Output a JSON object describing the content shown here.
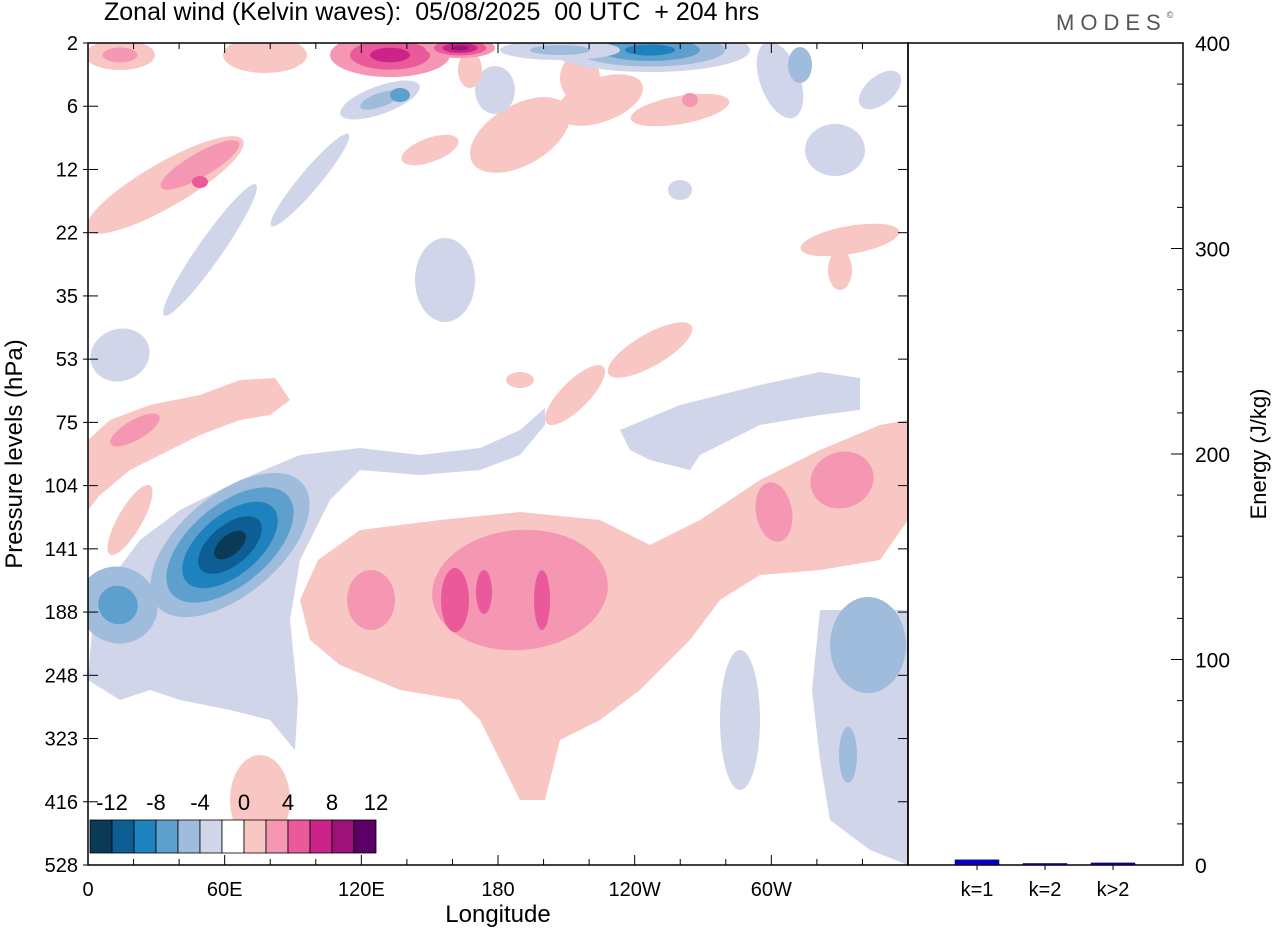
{
  "header": {
    "title": "Zonal wind (Kelvin waves):  05/08/2025  00 UTC  + 204 hrs",
    "brand": "MODES",
    "brand_mark": "©"
  },
  "chart_data": [
    {
      "type": "heatmap",
      "title": "Zonal wind (Kelvin waves):  05/08/2025  00 UTC  + 204 hrs",
      "xlabel": "Longitude",
      "ylabel": "Pressure levels (hPa)",
      "x_ticks": [
        "0",
        "60E",
        "120E",
        "180",
        "120W",
        "60W"
      ],
      "x_tick_values": [
        0,
        60,
        120,
        180,
        240,
        300
      ],
      "xlim": [
        0,
        360
      ],
      "y_ticks": [
        "2",
        "6",
        "12",
        "22",
        "35",
        "53",
        "75",
        "104",
        "141",
        "188",
        "248",
        "323",
        "416",
        "528"
      ],
      "colorbar": {
        "labels": [
          "-12",
          "-8",
          "-4",
          "0",
          "4",
          "8",
          "12"
        ],
        "levels": [
          -14,
          -12,
          -10,
          -8,
          -6,
          -4,
          -2,
          2,
          4,
          6,
          8,
          10,
          12,
          14
        ],
        "colors": [
          "#0b3a57",
          "#0d5f93",
          "#1e82bf",
          "#5d9fcd",
          "#9fbcdc",
          "#d1d5e9",
          "#ffffff",
          "#f8c6c3",
          "#f597b3",
          "#ea5a9a",
          "#cc2388",
          "#9e1179",
          "#5a0066"
        ]
      },
      "features": [
        {
          "sign": "negative",
          "peak": -13,
          "lon": 66,
          "level_hpa": 141
        },
        {
          "sign": "negative",
          "peak": -8,
          "lon": 12,
          "level_hpa": 175
        },
        {
          "sign": "positive",
          "peak": 7,
          "lon": 160,
          "level_hpa": 170
        },
        {
          "sign": "positive",
          "peak": 7,
          "lon": 198,
          "level_hpa": 160
        },
        {
          "sign": "positive",
          "peak": 5,
          "lon": 333,
          "level_hpa": 115
        },
        {
          "sign": "negative",
          "peak": -6,
          "lon": 335,
          "level_hpa": 210
        },
        {
          "sign": "positive",
          "peak": 8,
          "lon": 148,
          "level_hpa": 2
        },
        {
          "sign": "negative",
          "peak": -9,
          "lon": 260,
          "level_hpa": 2
        }
      ]
    },
    {
      "type": "bar",
      "ylabel": "Energy (J/kg)",
      "categories": [
        "k=1",
        "k=2",
        "k>2"
      ],
      "values": [
        2.5,
        0.5,
        1
      ],
      "ylim": [
        0,
        400
      ],
      "y_ticks": [
        "0",
        "100",
        "200",
        "300",
        "400"
      ],
      "bar_color": "#0000cc"
    }
  ]
}
